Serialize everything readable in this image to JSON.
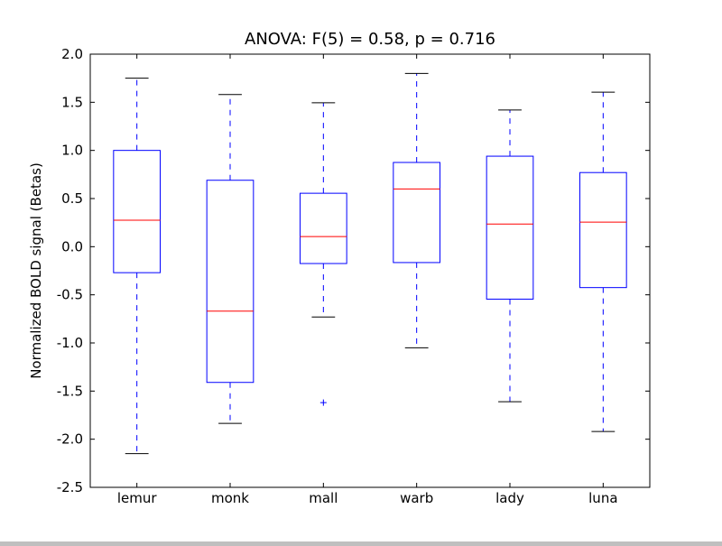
{
  "chart_data": {
    "type": "box",
    "title": "ANOVA: F(5) = 0.58, p = 0.716",
    "xlabel": "",
    "ylabel": "Normalized BOLD signal (Betas)",
    "ylim": [
      -2.5,
      2.0
    ],
    "yticks": [
      "-2.5",
      "-2.0",
      "-1.5",
      "-1.0",
      "-0.5",
      "0.0",
      "0.5",
      "1.0",
      "1.5",
      "2.0"
    ],
    "ytick_values": [
      -2.5,
      -2.0,
      -1.5,
      -1.0,
      -0.5,
      0.0,
      0.5,
      1.0,
      1.5,
      2.0
    ],
    "categories": [
      "lemur",
      "monk",
      "mall",
      "warb",
      "lady",
      "luna"
    ],
    "grid": false,
    "colors": {
      "box": "#0000ff",
      "median": "#ff0000",
      "cap": "#000000",
      "outlier": "#0000ff"
    },
    "boxes": [
      {
        "whislo": -2.15,
        "q1": -0.27,
        "med": 0.275,
        "q3": 1.0,
        "whishi": 1.75,
        "fliers": []
      },
      {
        "whislo": -1.835,
        "q1": -1.41,
        "med": -0.67,
        "q3": 0.69,
        "whishi": 1.58,
        "fliers": []
      },
      {
        "whislo": -0.73,
        "q1": -0.175,
        "med": 0.105,
        "q3": 0.555,
        "whishi": 1.495,
        "fliers": [
          -1.62
        ]
      },
      {
        "whislo": -1.05,
        "q1": -0.165,
        "med": 0.6,
        "q3": 0.875,
        "whishi": 1.8,
        "fliers": []
      },
      {
        "whislo": -1.61,
        "q1": -0.545,
        "med": 0.235,
        "q3": 0.94,
        "whishi": 1.42,
        "fliers": []
      },
      {
        "whislo": -1.92,
        "q1": -0.425,
        "med": 0.255,
        "q3": 0.77,
        "whishi": 1.605,
        "fliers": []
      }
    ]
  }
}
